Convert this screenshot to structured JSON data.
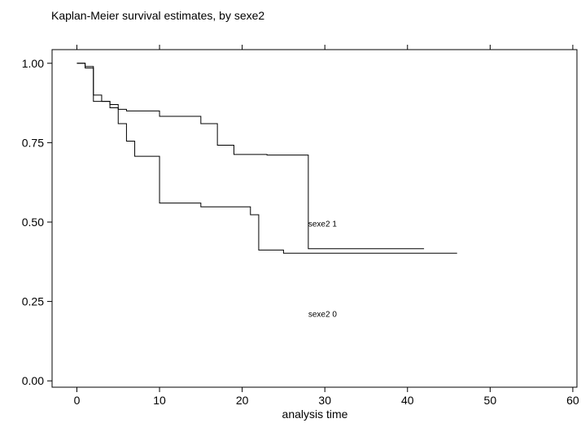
{
  "chart_data": {
    "type": "line",
    "step": true,
    "title": "Kaplan-Meier survival estimates, by sexe2",
    "xlabel": "analysis time",
    "ylabel": "",
    "xlim": [
      -3,
      60.5
    ],
    "ylim": [
      -0.02,
      1.043
    ],
    "xticks": [
      0,
      10,
      20,
      30,
      40,
      50,
      60
    ],
    "xtick_labels": [
      "0",
      "10",
      "20",
      "30",
      "40",
      "50",
      "60"
    ],
    "yticks": [
      0,
      0.25,
      0.5,
      0.75,
      1
    ],
    "ytick_labels": [
      "0.00",
      "0.25",
      "0.50",
      "0.75",
      "1.00"
    ],
    "grid": false,
    "frame": "box",
    "top_ticks": true,
    "series_labels": [
      {
        "text": "sexe2 1",
        "x": 28,
        "y": 0.486
      },
      {
        "text": "sexe2 0",
        "x": 28,
        "y": 0.202
      }
    ],
    "series": [
      {
        "points": [
          [
            0,
            1.0
          ],
          [
            1,
            1.0
          ],
          [
            1,
            0.985
          ],
          [
            2,
            0.985
          ],
          [
            2,
            0.9
          ],
          [
            3,
            0.9
          ],
          [
            3,
            0.88
          ],
          [
            4,
            0.88
          ],
          [
            4,
            0.87
          ],
          [
            5,
            0.87
          ],
          [
            5,
            0.855
          ],
          [
            6,
            0.855
          ],
          [
            6,
            0.85
          ],
          [
            10,
            0.85
          ],
          [
            10,
            0.833
          ],
          [
            15,
            0.833
          ],
          [
            15,
            0.81
          ],
          [
            17,
            0.81
          ],
          [
            17,
            0.742
          ],
          [
            19,
            0.742
          ],
          [
            19,
            0.713
          ],
          [
            23,
            0.713
          ],
          [
            23,
            0.711
          ],
          [
            28,
            0.711
          ],
          [
            28,
            0.416
          ],
          [
            42,
            0.416
          ]
        ]
      },
      {
        "points": [
          [
            0,
            1.0
          ],
          [
            1,
            1.0
          ],
          [
            1,
            0.99
          ],
          [
            2,
            0.99
          ],
          [
            2,
            0.88
          ],
          [
            4,
            0.88
          ],
          [
            4,
            0.86
          ],
          [
            5,
            0.86
          ],
          [
            5,
            0.81
          ],
          [
            6,
            0.81
          ],
          [
            6,
            0.755
          ],
          [
            7,
            0.755
          ],
          [
            7,
            0.707
          ],
          [
            10,
            0.707
          ],
          [
            10,
            0.56
          ],
          [
            15,
            0.56
          ],
          [
            15,
            0.548
          ],
          [
            21,
            0.548
          ],
          [
            21,
            0.523
          ],
          [
            22,
            0.523
          ],
          [
            22,
            0.412
          ],
          [
            25,
            0.412
          ],
          [
            25,
            0.402
          ],
          [
            46,
            0.402
          ]
        ]
      }
    ]
  }
}
